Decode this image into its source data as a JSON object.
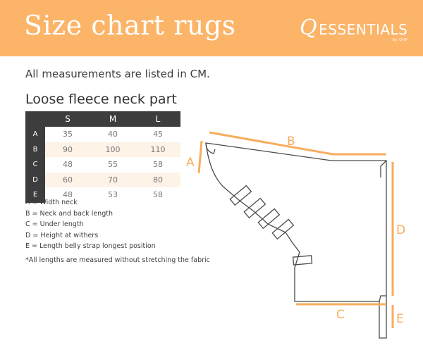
{
  "header": {
    "title": "Size chart rugs",
    "logo_q": "Q",
    "logo_text": "ESSENTIALS",
    "logo_by": "By QHP"
  },
  "intro": "All measurements are listed in CM.",
  "section_title": "Loose fleece neck part",
  "table": {
    "columns": [
      "S",
      "M",
      "L"
    ],
    "rows": [
      {
        "label": "A",
        "values": [
          "35",
          "40",
          "45"
        ]
      },
      {
        "label": "B",
        "values": [
          "90",
          "100",
          "110"
        ]
      },
      {
        "label": "C",
        "values": [
          "48",
          "55",
          "58"
        ]
      },
      {
        "label": "D",
        "values": [
          "60",
          "70",
          "80"
        ]
      },
      {
        "label": "E",
        "values": [
          "48",
          "53",
          "58"
        ]
      }
    ]
  },
  "legend": [
    "A = Width neck",
    "B = Neck and back length",
    "C = Under length",
    "D = Height at withers",
    "E = Length belly strap longest position"
  ],
  "note": "*All lengths are measured without stretching the fabric",
  "diagram": {
    "labels": {
      "a": "A",
      "b": "B",
      "c": "C",
      "d": "D",
      "e": "E"
    }
  },
  "colors": {
    "accent": "#fbb468",
    "dark": "#3d3d3d",
    "row_alt": "#fdf3e6"
  }
}
